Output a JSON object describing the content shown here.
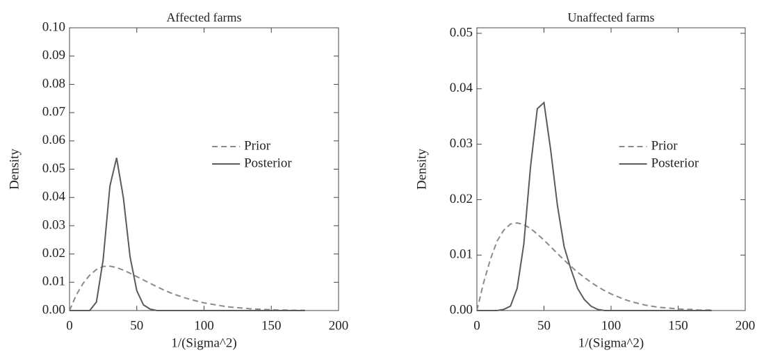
{
  "chart_data": [
    {
      "type": "line",
      "title": "Affected farms",
      "xlabel": "1/(Sigma^2)",
      "ylabel": "Density",
      "x": [
        0,
        5,
        10,
        15,
        20,
        25,
        30,
        35,
        40,
        45,
        50,
        55,
        60,
        65,
        70,
        75,
        80,
        85,
        90,
        95,
        100,
        105,
        110,
        115,
        120,
        125,
        130,
        135,
        140,
        145,
        150,
        155,
        160,
        165,
        170,
        175
      ],
      "series": [
        {
          "name": "Prior",
          "color": "#8a8a8a",
          "style": "dashed",
          "values": [
            0,
            0.0055,
            0.0095,
            0.0125,
            0.0145,
            0.0156,
            0.0157,
            0.0152,
            0.0143,
            0.0132,
            0.012,
            0.0108,
            0.0096,
            0.0084,
            0.0073,
            0.0063,
            0.0054,
            0.0046,
            0.0039,
            0.0033,
            0.0027,
            0.0023,
            0.0019,
            0.0015,
            0.0012,
            0.001,
            0.0008,
            0.0006,
            0.0005,
            0.0004,
            0.0003,
            0.0002,
            0.0002,
            0.0001,
            0.0001,
            0.0001
          ]
        },
        {
          "name": "Posterior",
          "color": "#5a5a5a",
          "style": "solid",
          "values": [
            0,
            0,
            0,
            0,
            0.003,
            0.018,
            0.044,
            0.054,
            0.04,
            0.019,
            0.007,
            0.002,
            0.0005,
            0,
            0,
            0,
            0,
            0,
            0,
            0,
            0,
            0,
            0,
            0,
            0,
            0,
            0,
            0,
            0,
            0,
            0,
            0,
            0,
            0,
            0,
            0
          ]
        }
      ],
      "xlim": [
        0,
        200
      ],
      "xticks": [
        0,
        50,
        100,
        150,
        200
      ],
      "ylim": [
        0,
        0.1
      ],
      "yticks": [
        {
          "value": 0,
          "label": "0.00"
        },
        0.01,
        0.02,
        0.03,
        0.04,
        0.05,
        0.06,
        0.07,
        0.08,
        0.09,
        {
          "value": 0.1,
          "label": "0.10"
        }
      ],
      "legend": "center-right"
    },
    {
      "type": "line",
      "title": "Unaffected farms",
      "xlabel": "1/(Sigma^2)",
      "ylabel": "Density",
      "x": [
        0,
        5,
        10,
        15,
        20,
        25,
        30,
        35,
        40,
        45,
        50,
        55,
        60,
        65,
        70,
        75,
        80,
        85,
        90,
        95,
        100,
        105,
        110,
        115,
        120,
        125,
        130,
        135,
        140,
        145,
        150,
        155,
        160,
        165,
        170,
        175
      ],
      "series": [
        {
          "name": "Prior",
          "color": "#8a8a8a",
          "style": "dashed",
          "values": [
            0,
            0.005,
            0.0092,
            0.0125,
            0.0145,
            0.0156,
            0.0158,
            0.0155,
            0.0148,
            0.0138,
            0.0127,
            0.0115,
            0.0103,
            0.0091,
            0.008,
            0.0069,
            0.006,
            0.0051,
            0.0043,
            0.0036,
            0.003,
            0.0025,
            0.002,
            0.0016,
            0.0013,
            0.001,
            0.0008,
            0.0006,
            0.0005,
            0.0004,
            0.0003,
            0.0002,
            0.0002,
            0.0001,
            0.0001,
            0.0001
          ]
        },
        {
          "name": "Posterior",
          "color": "#5a5a5a",
          "style": "solid",
          "values": [
            0,
            0,
            0,
            0,
            0.0002,
            0.0008,
            0.004,
            0.012,
            0.026,
            0.0364,
            0.0375,
            0.029,
            0.019,
            0.0115,
            0.0075,
            0.004,
            0.002,
            0.0008,
            0.0002,
            0,
            0,
            0,
            0,
            0,
            0,
            0,
            0,
            0,
            0,
            0,
            0,
            0,
            0,
            0,
            0,
            0
          ]
        }
      ],
      "xlim": [
        0,
        200
      ],
      "xticks": [
        0,
        50,
        100,
        150,
        200
      ],
      "ylim": [
        0,
        0.051
      ],
      "yticks": [
        {
          "value": 0,
          "label": "0.00"
        },
        0.01,
        0.02,
        0.03,
        0.04,
        0.05
      ],
      "legend": "center-right"
    }
  ]
}
